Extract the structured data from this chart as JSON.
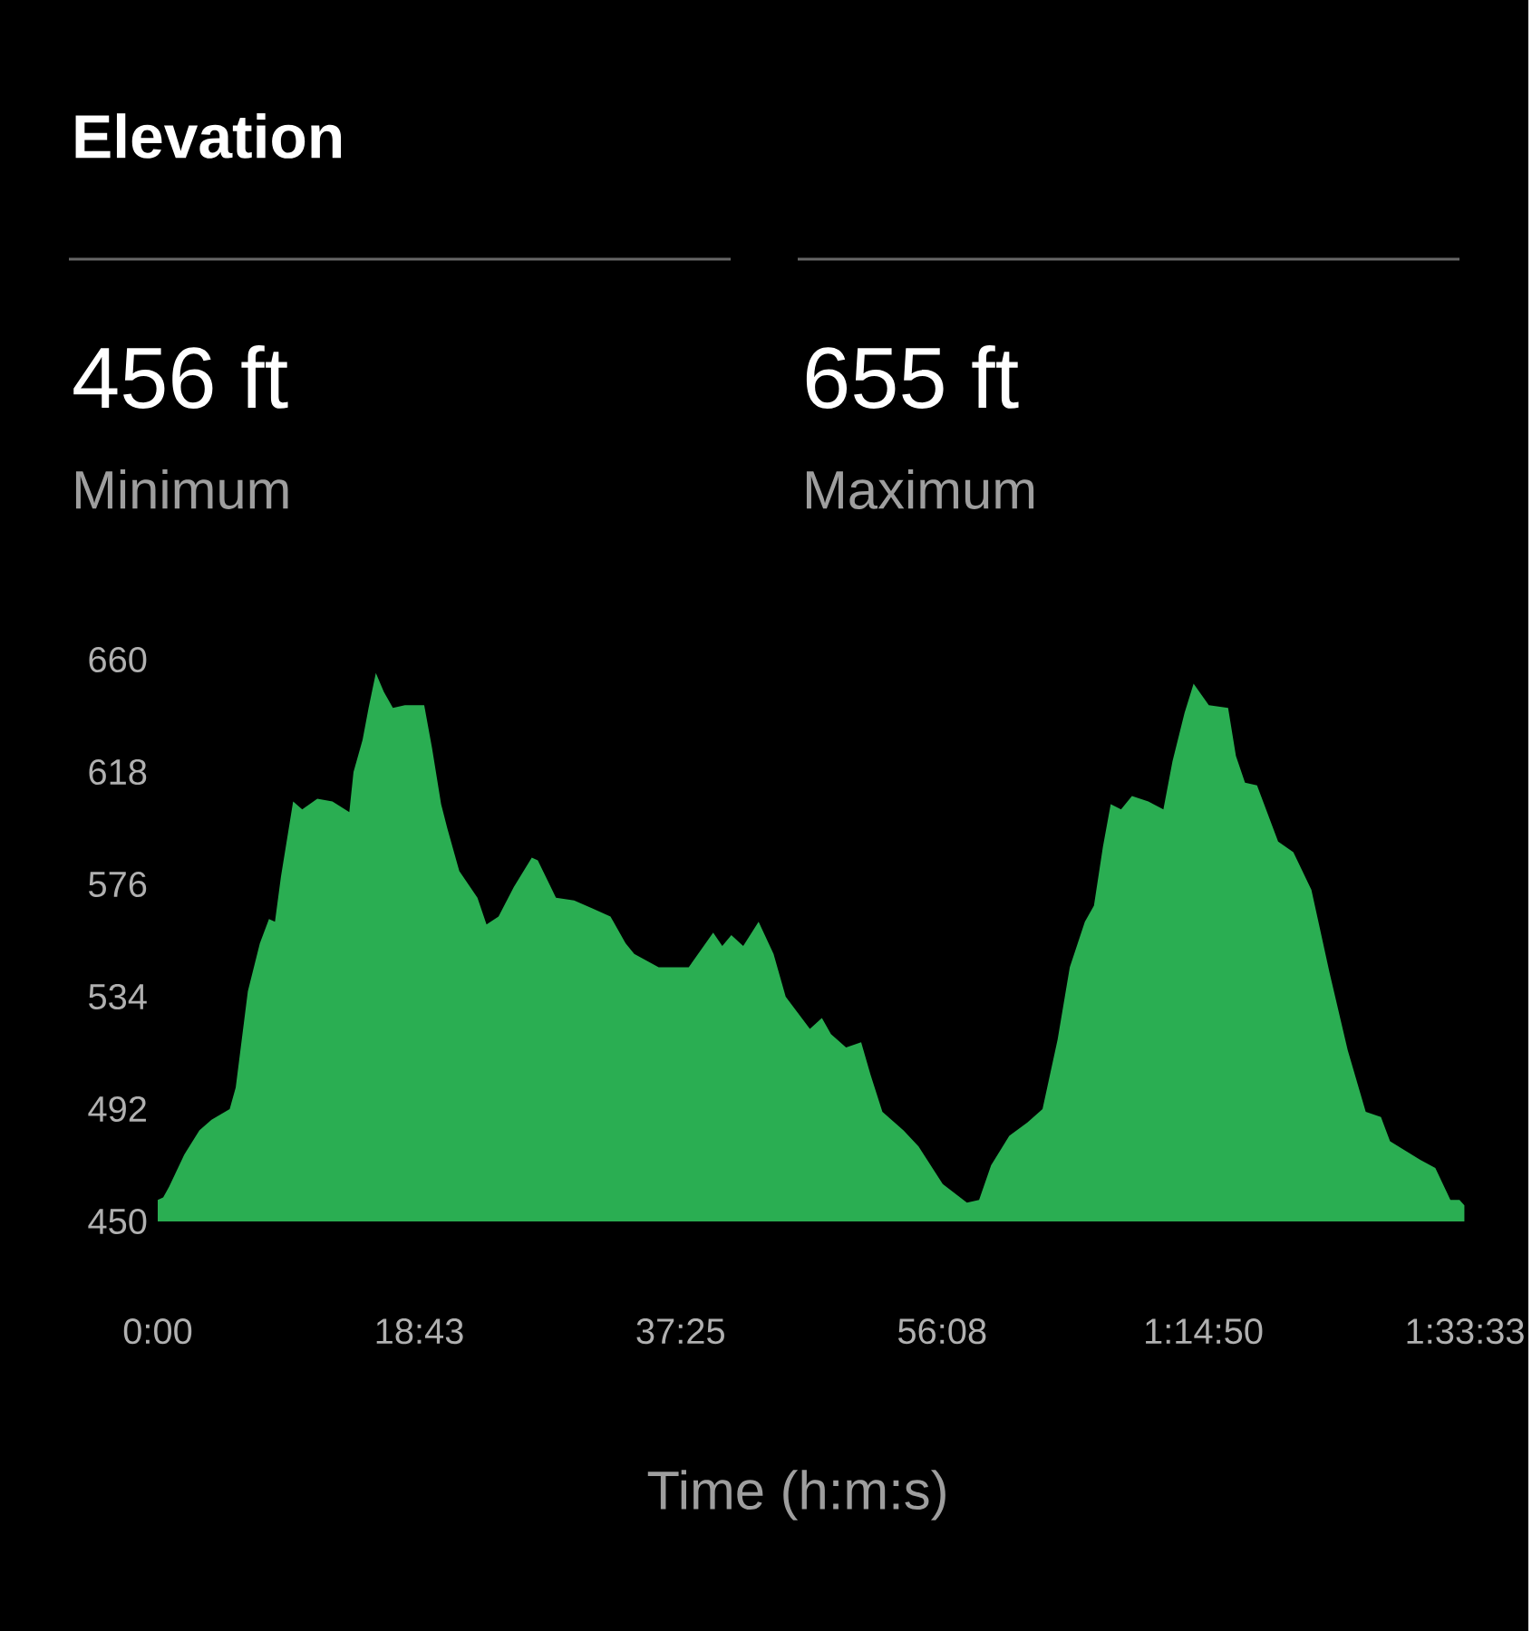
{
  "chart_data": {
    "type": "area",
    "title": "Elevation",
    "xlabel": "Time (h:m:s)",
    "annotations": [
      "456 ft",
      "Minimum",
      "655 ft",
      "Maximum"
    ],
    "x": [
      0,
      0.39,
      0.82,
      1.9,
      2.98,
      3.85,
      5.15,
      5.58,
      6.45,
      7.31,
      7.96,
      8.39,
      8.82,
      9.69,
      10.34,
      11.42,
      12.5,
      13.71,
      14.01,
      14.66,
      15.09,
      15.61,
      16.18,
      16.83,
      17.69,
      19.07,
      19.63,
      20.28,
      20.72,
      21.58,
      22.88,
      23.53,
      24.39,
      25.48,
      26.77,
      27.2,
      28.5,
      29.8,
      31.1,
      32.4,
      33.48,
      34.1,
      35.85,
      38.0,
      39.75,
      40.4,
      41.05,
      41.9,
      43.0,
      44.07,
      44.94,
      46.67,
      47.53,
      48.18,
      49.26,
      50.34,
      51.0,
      51.86,
      53.37,
      54.45,
      56.18,
      57.91,
      58.78,
      59.64,
      60.94,
      62.24,
      63.32,
      64.4,
      65.27,
      66.35,
      67.0,
      67.64,
      68.2,
      68.94,
      69.72,
      70.89,
      71.97,
      72.62,
      73.48,
      74.13,
      75.22,
      76.6,
      77.16,
      77.81,
      78.67,
      80.18,
      81.27,
      82.56,
      83.86,
      85.16,
      86.45,
      87.54,
      88.19,
      90.35,
      91.43,
      92.51,
      93.16,
      93.51
    ],
    "series": [
      {
        "color": "#2aae52",
        "values": [
          458,
          459,
          463,
          475,
          484,
          488,
          492,
          500,
          536,
          554,
          563,
          562,
          579,
          607,
          604,
          608,
          607,
          603,
          618,
          630,
          642,
          655,
          648,
          642,
          643,
          643,
          627,
          606,
          597,
          581,
          571,
          561,
          564,
          575,
          586,
          585,
          571,
          570,
          567,
          564,
          554,
          550,
          545,
          545,
          558,
          553,
          557,
          553,
          562,
          550,
          534,
          522,
          526,
          520,
          515,
          517,
          505,
          491,
          484,
          478,
          464,
          457,
          458,
          471,
          482,
          487,
          492,
          518,
          545,
          562,
          568,
          590,
          606,
          604,
          609,
          607,
          604,
          622,
          640,
          651,
          643,
          642,
          624,
          614,
          613,
          592,
          588,
          574,
          543,
          514,
          491,
          489,
          480,
          473,
          470,
          458,
          458,
          456
        ]
      }
    ],
    "xlim": [
      0,
      93.55
    ],
    "ylim": [
      450,
      660
    ],
    "xticks": [
      {
        "value": 0,
        "label": "0:00"
      },
      {
        "value": 18.7167,
        "label": "18:43"
      },
      {
        "value": 37.4167,
        "label": "37:25"
      },
      {
        "value": 56.1333,
        "label": "56:08"
      },
      {
        "value": 74.8333,
        "label": "1:14:50"
      },
      {
        "value": 93.55,
        "label": "1:33:33"
      }
    ],
    "yticks": [
      450,
      492,
      534,
      576,
      618,
      660
    ],
    "grid": false
  }
}
